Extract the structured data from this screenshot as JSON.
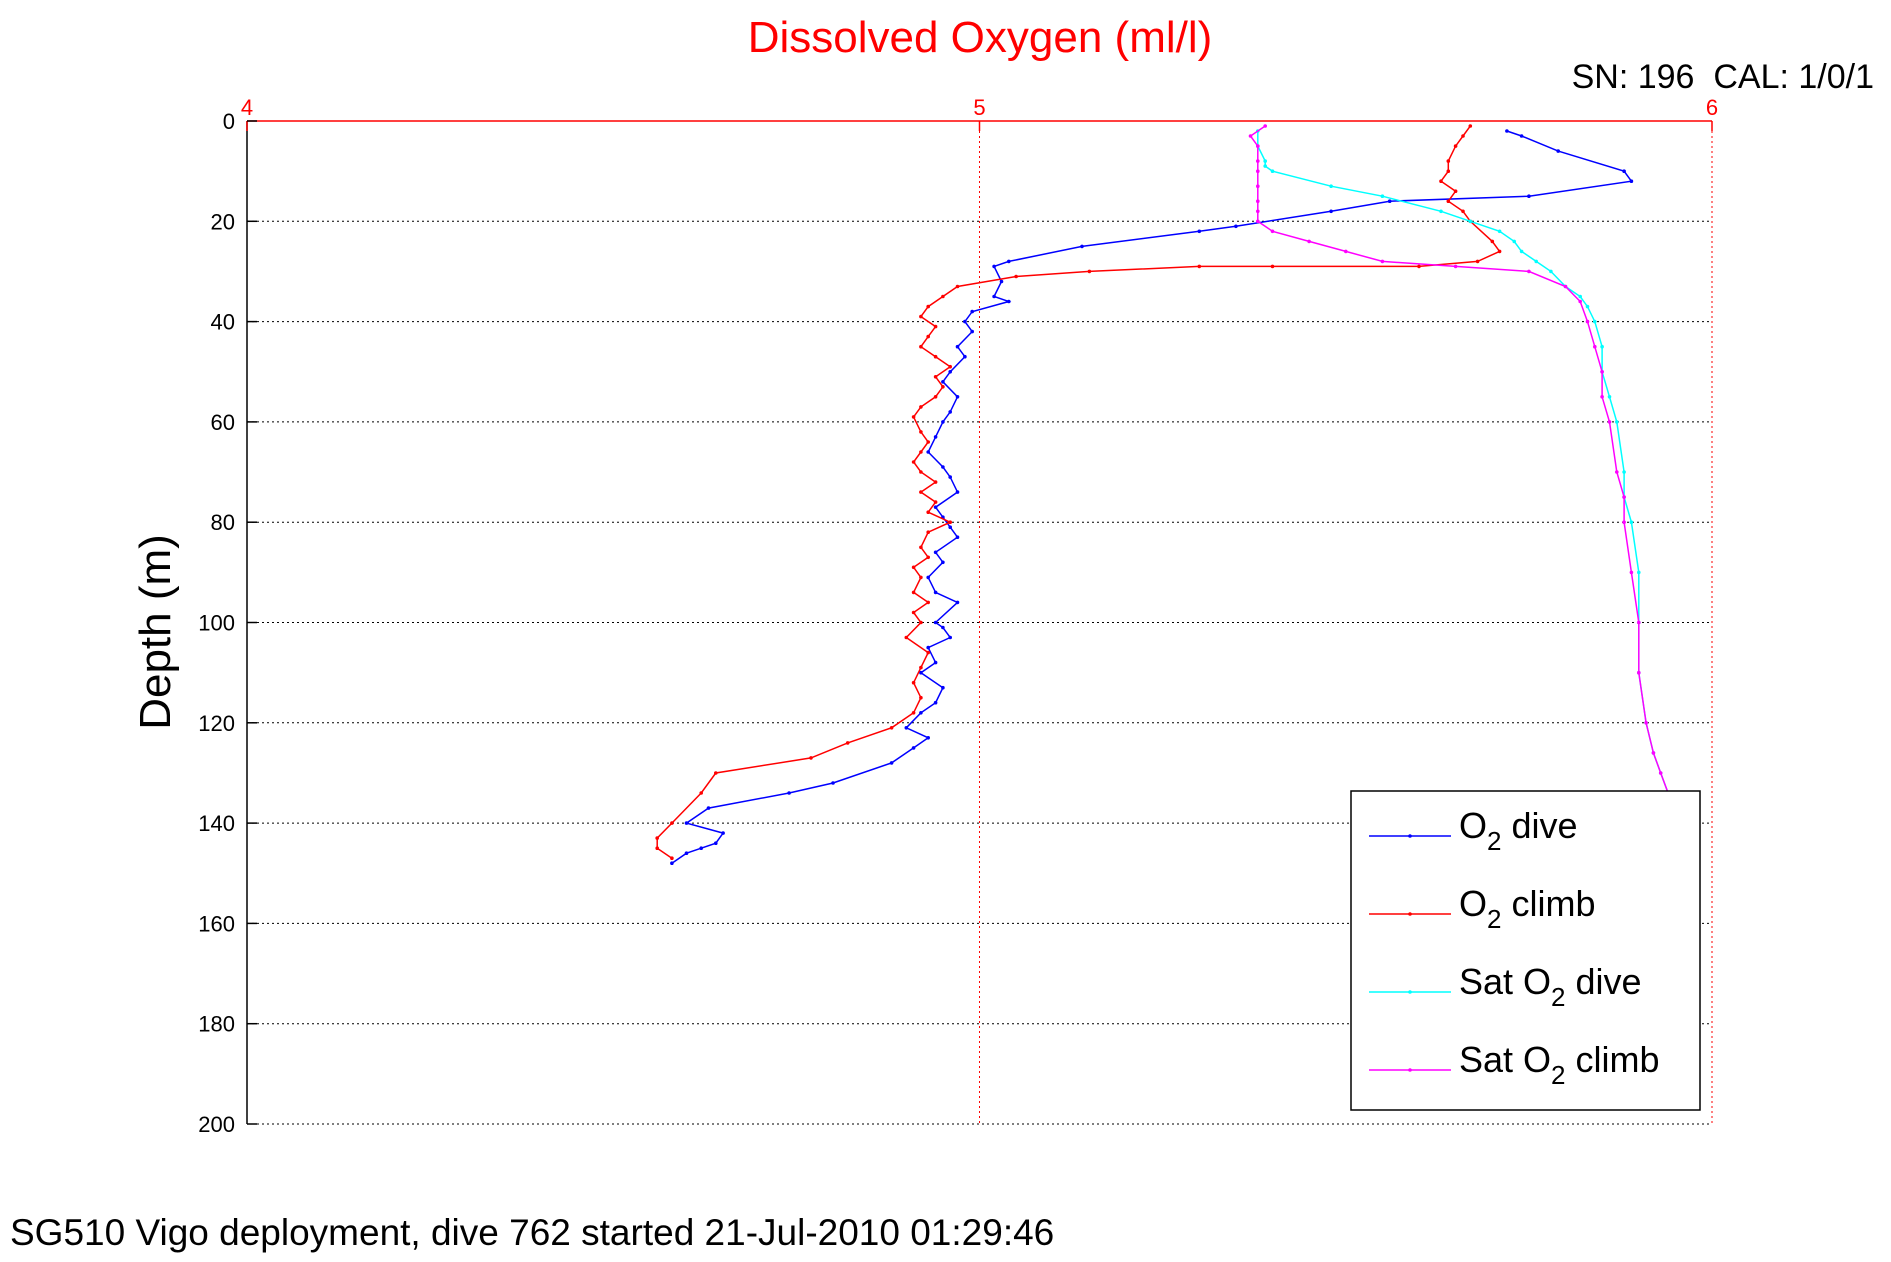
{
  "chart_data": {
    "type": "line",
    "title": "Dissolved Oxygen (ml/l)",
    "calibration_label": "SN: 196  CAL: 1/0/1",
    "ylabel": "Depth (m)",
    "footer": "SG510 Vigo deployment, dive 762 started 21-Jul-2010 01:29:46",
    "xlim": [
      4,
      6
    ],
    "ylim": [
      0,
      200
    ],
    "y_reversed": true,
    "x_axis_position": "top",
    "x_ticks": [
      4,
      5,
      6
    ],
    "y_ticks": [
      0,
      20,
      40,
      60,
      80,
      100,
      120,
      140,
      160,
      180,
      200
    ],
    "grid": "dotted",
    "legend_position": "bottom-right",
    "colors": {
      "title": "#ff0000",
      "x_axis": "#ff0000",
      "text": "#000000"
    },
    "series": [
      {
        "name": "O2 dive",
        "legend_base": "O",
        "legend_sub": "2",
        "legend_suffix": " dive",
        "color": "#0000ff",
        "x": [
          5.72,
          5.74,
          5.79,
          5.88,
          5.89,
          5.75,
          5.56,
          5.48,
          5.35,
          5.3,
          5.14,
          5.04,
          5.02,
          5.03,
          5.02,
          5.04,
          4.99,
          4.98,
          4.99,
          4.97,
          4.98,
          4.96,
          4.95,
          4.97,
          4.96,
          4.95,
          4.94,
          4.93,
          4.95,
          4.96,
          4.97,
          4.94,
          4.95,
          4.96,
          4.97,
          4.94,
          4.95,
          4.93,
          4.94,
          4.97,
          4.94,
          4.95,
          4.96,
          4.93,
          4.94,
          4.92,
          4.95,
          4.94,
          4.92,
          4.9,
          4.93,
          4.91,
          4.88,
          4.8,
          4.74,
          4.63,
          4.6,
          4.65,
          4.64,
          4.62,
          4.6,
          4.58
        ],
        "y": [
          2,
          3,
          6,
          10,
          12,
          15,
          16,
          18,
          21,
          22,
          25,
          28,
          29,
          32,
          35,
          36,
          38,
          40,
          42,
          45,
          47,
          50,
          52,
          55,
          58,
          60,
          63,
          66,
          69,
          71,
          74,
          77,
          79,
          81,
          83,
          86,
          88,
          91,
          94,
          96,
          100,
          101,
          103,
          105,
          108,
          110,
          113,
          116,
          118,
          121,
          123,
          125,
          128,
          132,
          134,
          137,
          140,
          142,
          144,
          145,
          146,
          148
        ]
      },
      {
        "name": "O2 climb",
        "legend_base": "O",
        "legend_sub": "2",
        "legend_suffix": " climb",
        "color": "#ff0000",
        "x": [
          5.67,
          5.66,
          5.65,
          5.64,
          5.64,
          5.63,
          5.65,
          5.64,
          5.66,
          5.67,
          5.7,
          5.71,
          5.68,
          5.6,
          5.4,
          5.3,
          5.15,
          5.05,
          4.97,
          4.95,
          4.93,
          4.92,
          4.94,
          4.93,
          4.92,
          4.94,
          4.96,
          4.94,
          4.95,
          4.94,
          4.92,
          4.91,
          4.92,
          4.93,
          4.92,
          4.91,
          4.92,
          4.94,
          4.92,
          4.94,
          4.93,
          4.96,
          4.93,
          4.92,
          4.93,
          4.91,
          4.92,
          4.91,
          4.93,
          4.91,
          4.92,
          4.9,
          4.93,
          4.92,
          4.91,
          4.92,
          4.91,
          4.88,
          4.82,
          4.77,
          4.64,
          4.62,
          4.58,
          4.56,
          4.56,
          4.58
        ],
        "y": [
          1,
          3,
          5,
          8,
          10,
          12,
          14,
          16,
          18,
          20,
          24,
          26,
          28,
          29,
          29,
          29,
          30,
          31,
          33,
          35,
          37,
          39,
          41,
          43,
          45,
          47,
          49,
          51,
          53,
          55,
          57,
          59,
          62,
          64,
          66,
          68,
          70,
          72,
          74,
          76,
          78,
          80,
          82,
          85,
          87,
          89,
          91,
          94,
          96,
          98,
          100,
          103,
          106,
          109,
          112,
          115,
          118,
          121,
          124,
          127,
          130,
          134,
          140,
          143,
          145,
          147
        ]
      },
      {
        "name": "Sat O2 dive",
        "legend_base": "Sat O",
        "legend_sub": "2",
        "legend_suffix": " dive",
        "color": "#00ffff",
        "x": [
          5.38,
          5.38,
          5.39,
          5.39,
          5.4,
          5.48,
          5.55,
          5.63,
          5.67,
          5.71,
          5.73,
          5.74,
          5.76,
          5.78,
          5.8,
          5.82,
          5.83,
          5.84,
          5.85,
          5.85,
          5.86,
          5.87,
          5.88,
          5.88,
          5.89,
          5.9,
          5.9,
          5.9,
          5.91,
          5.92,
          5.93,
          5.94
        ],
        "y": [
          2,
          5,
          8,
          9,
          10,
          13,
          15,
          18,
          20,
          22,
          24,
          26,
          28,
          30,
          33,
          35,
          37,
          40,
          45,
          50,
          55,
          60,
          70,
          75,
          80,
          90,
          100,
          110,
          120,
          126,
          130,
          134
        ]
      },
      {
        "name": "Sat O2 climb",
        "legend_base": "Sat O",
        "legend_sub": "2",
        "legend_suffix": " climb",
        "color": "#ff00ff",
        "x": [
          5.39,
          5.37,
          5.38,
          5.38,
          5.38,
          5.38,
          5.38,
          5.38,
          5.38,
          5.4,
          5.45,
          5.5,
          5.55,
          5.65,
          5.75,
          5.8,
          5.82,
          5.83,
          5.84,
          5.85,
          5.85,
          5.86,
          5.87,
          5.88,
          5.88,
          5.89,
          5.9,
          5.9,
          5.91,
          5.92,
          5.93,
          5.94
        ],
        "y": [
          1,
          3,
          5,
          8,
          10,
          13,
          16,
          18,
          20,
          22,
          24,
          26,
          28,
          29,
          30,
          33,
          36,
          40,
          45,
          50,
          55,
          60,
          70,
          75,
          80,
          90,
          100,
          110,
          120,
          126,
          130,
          134
        ]
      }
    ]
  }
}
